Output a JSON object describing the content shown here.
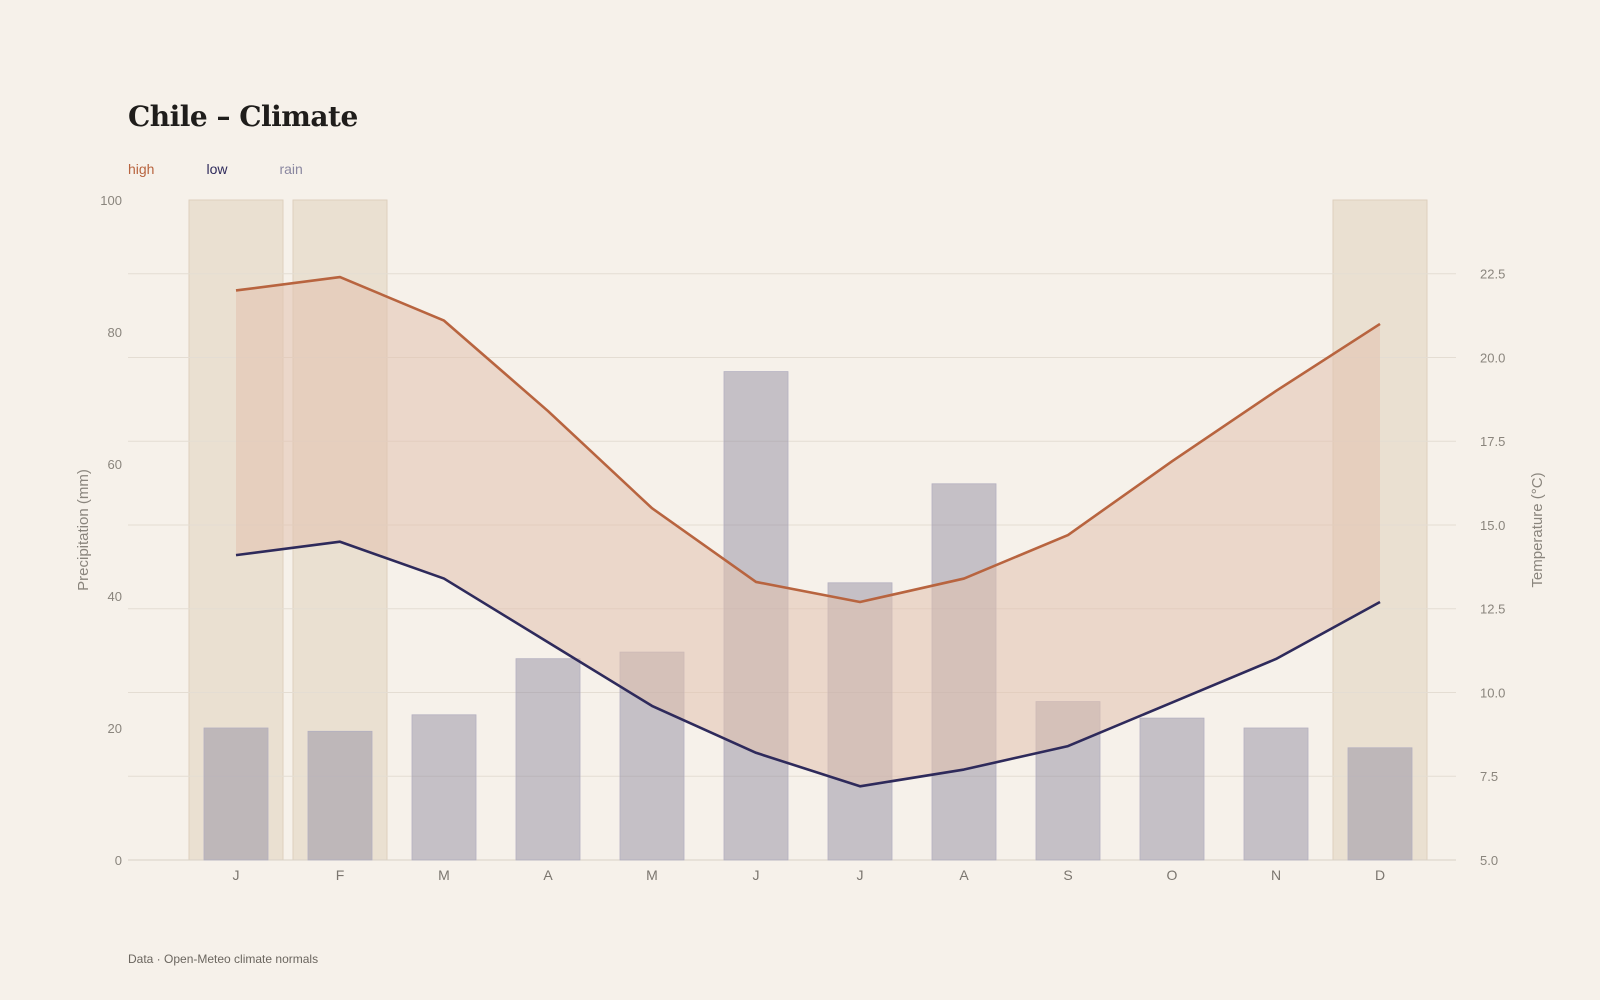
{
  "header": {
    "title": "Chile – Climate",
    "legend": {
      "high": "high",
      "low": "low",
      "rain": "rain"
    },
    "source": "Data · Open-Meteo climate normals"
  },
  "colors": {
    "background": "#f6f1ea",
    "high_line": "#b8643f",
    "low_line": "#2e2a5b",
    "band_fill": "#e2c1ae",
    "rain_bar": "#8a859c",
    "summer_shade": "#e6dac8",
    "grid": "#e4ddd3"
  },
  "chart_data": {
    "type": "bar+line",
    "categories": [
      "J",
      "F",
      "M",
      "A",
      "M",
      "J",
      "J",
      "A",
      "S",
      "O",
      "N",
      "D"
    ],
    "series": [
      {
        "name": "rain",
        "axis": "left",
        "type": "bar",
        "values": [
          20,
          19.5,
          22,
          30.5,
          31.5,
          74,
          42,
          57,
          24,
          21.5,
          20,
          17
        ]
      },
      {
        "name": "high",
        "axis": "right",
        "type": "line",
        "values": [
          22.0,
          22.4,
          21.1,
          18.4,
          15.5,
          13.3,
          12.7,
          13.4,
          14.7,
          16.9,
          19.0,
          21.0
        ]
      },
      {
        "name": "low",
        "axis": "right",
        "type": "line",
        "values": [
          14.1,
          14.5,
          13.4,
          11.5,
          9.6,
          8.2,
          7.2,
          7.7,
          8.4,
          9.7,
          11.0,
          12.7
        ]
      }
    ],
    "shaded_months": [
      "J",
      "F",
      "D"
    ],
    "ylabel_left": "Precipitation (mm)",
    "ylabel_right": "Temperature (°C)",
    "ylim_left": [
      0,
      100
    ],
    "ylim_right": [
      5,
      24.7
    ],
    "yticks_left": [
      "0",
      "20",
      "40",
      "60",
      "80",
      "100"
    ],
    "yticks_right": [
      "5.0",
      "7.5",
      "10.0",
      "12.5",
      "15.0",
      "17.5",
      "20.0",
      "22.5"
    ],
    "grid": true
  }
}
